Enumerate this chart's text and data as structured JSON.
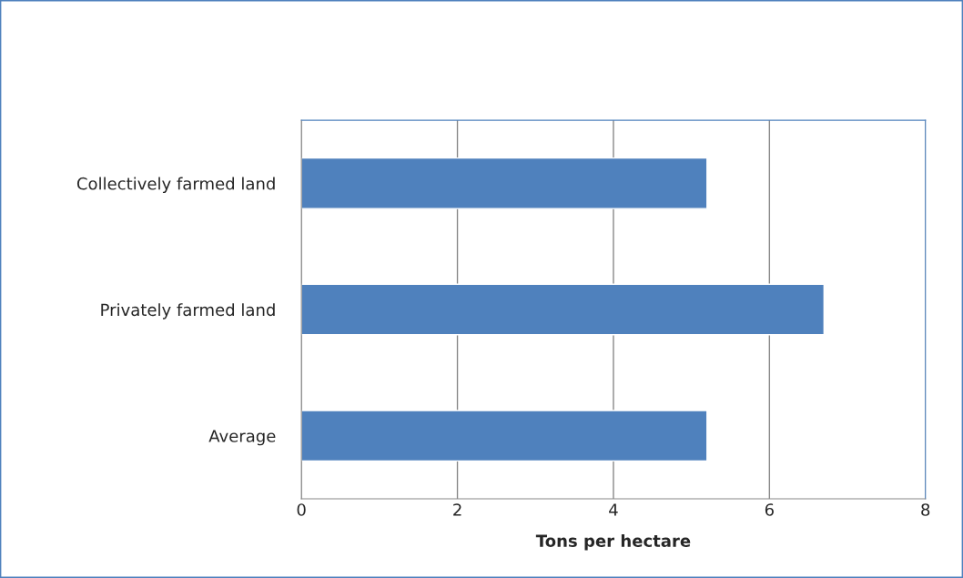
{
  "chart_data": {
    "type": "bar",
    "orientation": "horizontal",
    "categories": [
      "Collectively farmed land",
      "Privately farmed land",
      "Average"
    ],
    "values": [
      5.2,
      6.7,
      5.2
    ],
    "color": "#4f81bd",
    "xlabel": "Tons per hectare",
    "xlim": [
      0,
      8
    ],
    "xticks": [
      0,
      2,
      4,
      6,
      8
    ],
    "grid": "x",
    "legend": false
  }
}
